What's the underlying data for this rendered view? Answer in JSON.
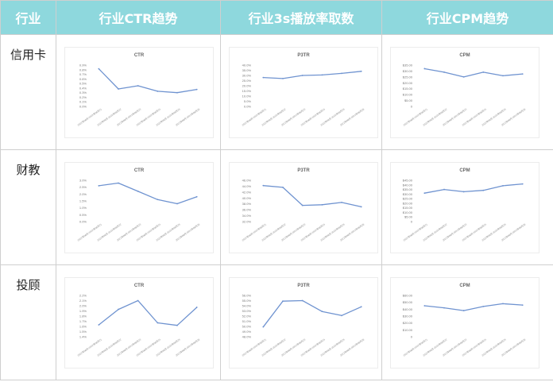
{
  "table": {
    "headers": [
      "行业",
      "行业CTR趋势",
      "行业3s播放率取数",
      "行业CPM趋势"
    ],
    "rows": [
      "信用卡",
      "财教",
      "投顾"
    ]
  },
  "colors": {
    "header_bg": "#8ed8dd",
    "header_text": "#ffffff",
    "line": "#6f93d0",
    "border": "#cfcfcf"
  },
  "chart_data": [
    {
      "row": "信用卡",
      "type": "line",
      "title": "CTR",
      "x": [
        "2022年08月-2022年08月21",
        "2022年08月-2022年08月22",
        "2022年08月-2022年08月23",
        "2022年08月-2022年08月24",
        "2022年08月-2022年08月25",
        "2022年08月-2022年08月26"
      ],
      "y_ticks": [
        "0.0%",
        "0.1%",
        "0.2%",
        "0.3%",
        "0.4%",
        "0.5%",
        "0.6%",
        "0.7%",
        "0.8%",
        "0.9%"
      ],
      "ylim": [
        0,
        0.9
      ],
      "values": [
        0.82,
        0.38,
        0.45,
        0.33,
        0.3,
        0.37
      ]
    },
    {
      "row": "信用卡",
      "type": "line",
      "title": "P3TR",
      "x": [
        "2022年08月-2022年08月21",
        "2022年08月-2022年08月22",
        "2022年08月-2022年08月23",
        "2022年08月-2022年08月24",
        "2022年08月-2022年08月25",
        "2022年08月-2022年08月26"
      ],
      "y_ticks": [
        "0.0%",
        "5.0%",
        "10.0%",
        "15.0%",
        "20.0%",
        "25.0%",
        "30.0%",
        "35.0%",
        "40.0%"
      ],
      "ylim": [
        0,
        40
      ],
      "values": [
        28,
        27,
        30,
        30.5,
        32,
        34
      ]
    },
    {
      "row": "信用卡",
      "type": "line",
      "title": "CPM",
      "x": [
        "2022年08月-2022年08月21",
        "2022年08月-2022年08月22",
        "2022年08月-2022年08月23",
        "2022年08月-2022年08月24",
        "2022年08月-2022年08月25",
        "2022年08月-2022年08月26"
      ],
      "y_ticks": [
        "0",
        "$5.00",
        "$10.00",
        "$15.00",
        "$20.00",
        "$25.00",
        "$30.00",
        "$35.00"
      ],
      "ylim": [
        0,
        35
      ],
      "values": [
        32,
        29,
        25,
        29,
        26,
        27.5
      ]
    },
    {
      "row": "财教",
      "type": "line",
      "title": "CTR",
      "x": [
        "2022年08月-2022年08月21",
        "2022年08月-2022年08月22",
        "2022年08月-2022年08月23",
        "2022年08月-2022年08月24",
        "2022年08月-2022年08月25",
        "2022年08月-2022年08月26"
      ],
      "y_ticks": [
        "0.0%",
        "0.5%",
        "1.0%",
        "1.5%",
        "2.0%",
        "2.5%",
        "3.0%"
      ],
      "ylim": [
        0,
        3
      ],
      "values": [
        2.6,
        2.8,
        2.2,
        1.6,
        1.3,
        1.8
      ]
    },
    {
      "row": "财教",
      "type": "line",
      "title": "P3TR",
      "x": [
        "2022年08月-2022年08月21",
        "2022年08月-2022年08月22",
        "2022年08月-2022年08月23",
        "2022年08月-2022年08月24",
        "2022年08月-2022年08月25",
        "2022年08月-2022年08月26"
      ],
      "y_ticks": [
        "32.0%",
        "34.0%",
        "36.0%",
        "38.0%",
        "40.0%",
        "42.0%",
        "44.0%",
        "46.0%"
      ],
      "ylim": [
        32,
        46
      ],
      "values": [
        44.2,
        43.6,
        37.5,
        37.7,
        38.5,
        37
      ]
    },
    {
      "row": "财教",
      "type": "line",
      "title": "CPM",
      "x": [
        "2022年08月-2022年08月21",
        "2022年08月-2022年08月22",
        "2022年08月-2022年08月23",
        "2022年08月-2022年08月24",
        "2022年08月-2022年08月25",
        "2022年08月-2022年08月26"
      ],
      "y_ticks": [
        "0",
        "$5.00",
        "$10.00",
        "$15.00",
        "$20.00",
        "$25.00",
        "$30.00",
        "$35.00",
        "$40.00",
        "$45.00"
      ],
      "ylim": [
        0,
        45
      ],
      "values": [
        31,
        35,
        32.5,
        34,
        39,
        41
      ]
    },
    {
      "row": "投顾",
      "type": "line",
      "title": "CTR",
      "x": [
        "2022年08月-2022年08月21",
        "2022年08月-2022年08月22",
        "2022年08月-2022年08月23",
        "2022年08月-2022年08月24",
        "2022年08月-2022年08月25",
        "2022年08月-2022年08月26"
      ],
      "y_ticks": [
        "1.4%",
        "1.5%",
        "1.6%",
        "1.7%",
        "1.8%",
        "1.9%",
        "2.0%",
        "2.1%",
        "2.2%"
      ],
      "ylim": [
        1.4,
        2.2
      ],
      "values": [
        1.63,
        1.93,
        2.1,
        1.67,
        1.62,
        1.97
      ]
    },
    {
      "row": "投顾",
      "type": "line",
      "title": "P3TR",
      "x": [
        "2022年08月-2022年08月21",
        "2022年08月-2022年08月22",
        "2022年08月-2022年08月23",
        "2022年08月-2022年08月24",
        "2022年08月-2022年08月25",
        "2022年08月-2022年08月26"
      ],
      "y_ticks": [
        "48.0%",
        "49.0%",
        "50.0%",
        "51.0%",
        "52.0%",
        "53.0%",
        "54.0%",
        "55.0%",
        "56.0%"
      ],
      "ylim": [
        48,
        56
      ],
      "values": [
        49.9,
        54.9,
        55,
        52.9,
        52.1,
        53.8
      ]
    },
    {
      "row": "投顾",
      "type": "line",
      "title": "CPM",
      "x": [
        "2022年08月-2022年08月21",
        "2022年08月-2022年08月22",
        "2022年08月-2022年08月23",
        "2022年08月-2022年08月24",
        "2022年08月-2022年08月25",
        "2022年08月-2022年08月26"
      ],
      "y_ticks": [
        "0",
        "$10.00",
        "$20.00",
        "$30.00",
        "$40.00",
        "$50.00",
        "$60.00"
      ],
      "ylim": [
        0,
        60
      ],
      "values": [
        45,
        42,
        38,
        44,
        48,
        46
      ]
    }
  ]
}
